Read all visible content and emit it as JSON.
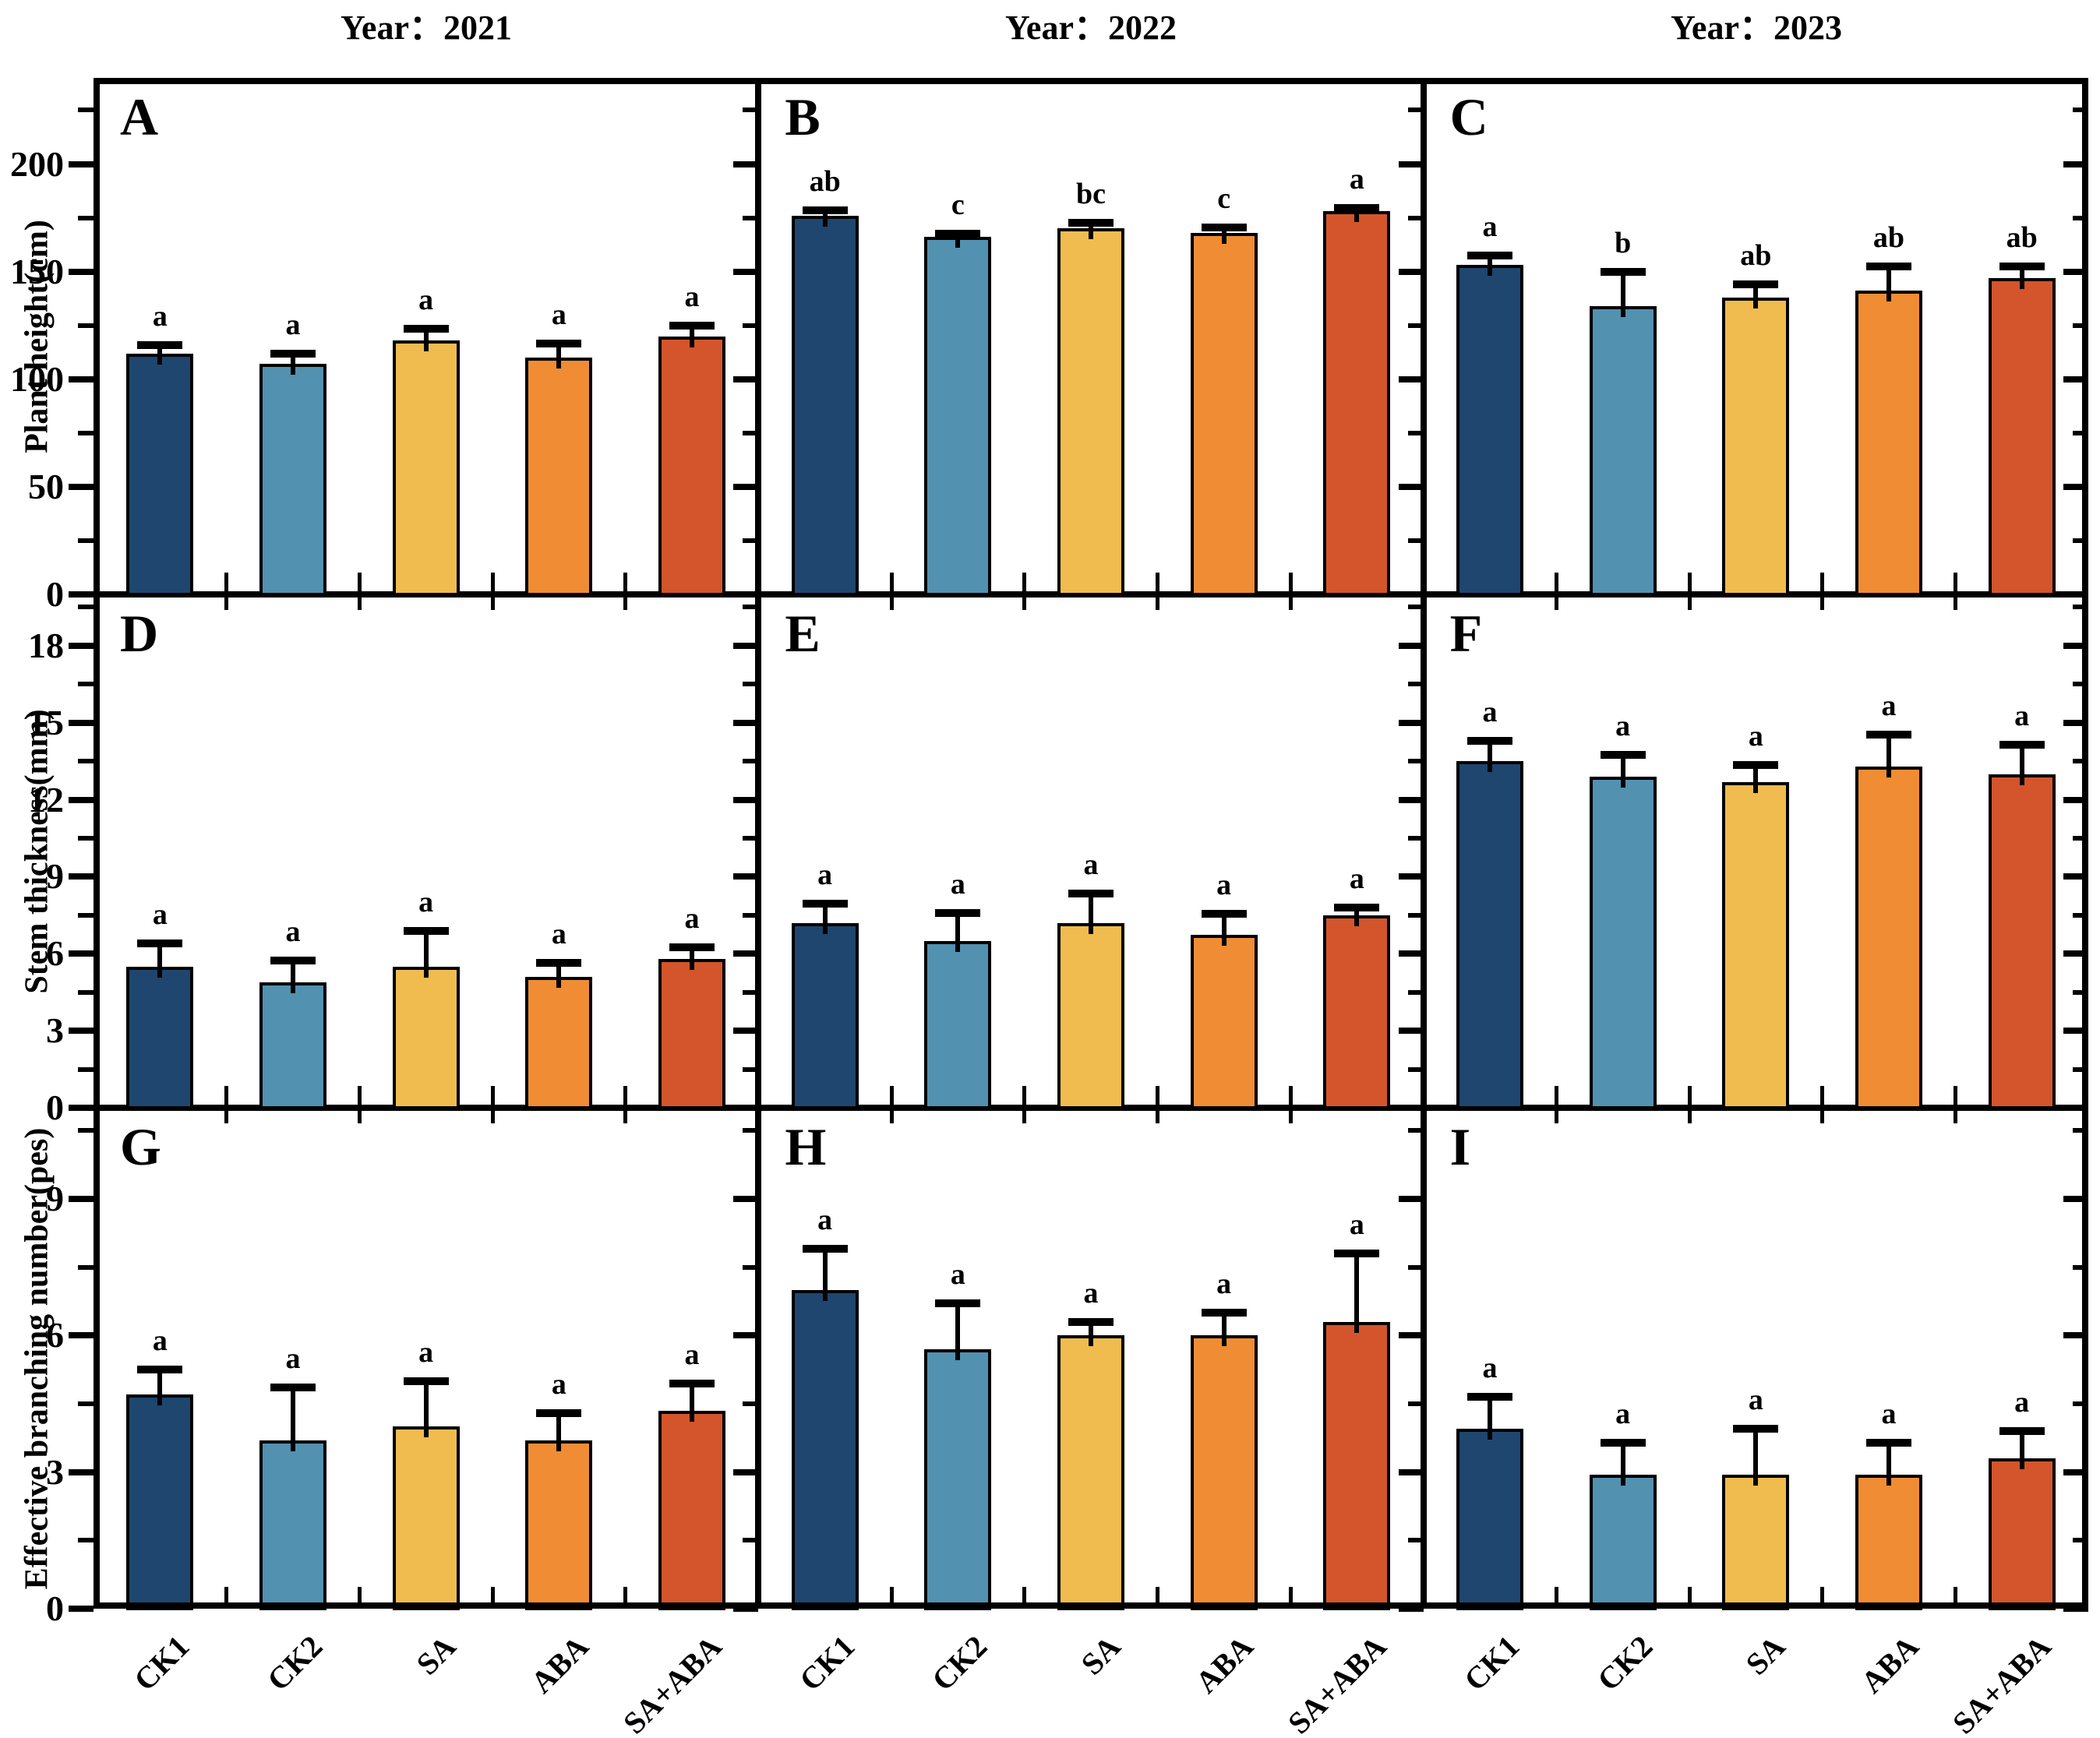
{
  "chart_data": {
    "type": "bar",
    "layout": "3x3 grid of subplots; columns are years, rows are measured traits; error bars with caps and significance letters above each bar",
    "grid": "off",
    "legend": "none",
    "categories": [
      "CK1",
      "CK2",
      "SA",
      "ABA",
      "SA+ABA"
    ],
    "bar_colors": [
      "#1F466F",
      "#5291B0",
      "#F0BC4F",
      "#F08C33",
      "#D4552B"
    ],
    "column_titles": [
      "Year：2021",
      "Year：2022",
      "Year：2023"
    ],
    "rows": [
      {
        "ylabel": "Plant height(cm)",
        "ylim": [
          0,
          240
        ],
        "yticks": [
          0,
          50,
          100,
          150,
          200
        ],
        "minor_tick_step": 25,
        "panels": [
          {
            "label": "A",
            "year": "2021",
            "values": [
              112,
              107,
              118,
              110,
              120
            ],
            "errors": [
              4,
              5,
              5.5,
              6.5,
              5
            ],
            "sig_letters": [
              "a",
              "a",
              "a",
              "a",
              "a"
            ]
          },
          {
            "label": "B",
            "year": "2022",
            "values": [
              176,
              166,
              170,
              168,
              178
            ],
            "errors": [
              2.5,
              1.5,
              2.5,
              2.5,
              1.5
            ],
            "sig_letters": [
              "ab",
              "c",
              "bc",
              "c",
              "a"
            ]
          },
          {
            "label": "C",
            "year": "2023",
            "values": [
              153,
              134,
              138,
              141,
              147
            ],
            "errors": [
              4.5,
              16,
              6,
              11.5,
              5.5
            ],
            "sig_letters": [
              "a",
              "b",
              "ab",
              "ab",
              "ab"
            ]
          }
        ]
      },
      {
        "ylabel": "Stem thickness(mm)",
        "ylim": [
          0,
          20
        ],
        "yticks": [
          0,
          3,
          6,
          9,
          12,
          15,
          18
        ],
        "minor_tick_step": 1.5,
        "panels": [
          {
            "label": "D",
            "year": "2021",
            "values": [
              5.5,
              4.9,
              5.5,
              5.1,
              5.8
            ],
            "errors": [
              0.9,
              0.85,
              1.4,
              0.55,
              0.45
            ],
            "sig_letters": [
              "a",
              "a",
              "a",
              "a",
              "a"
            ]
          },
          {
            "label": "E",
            "year": "2022",
            "values": [
              7.2,
              6.5,
              7.2,
              6.75,
              7.5
            ],
            "errors": [
              0.75,
              1.1,
              1.15,
              0.8,
              0.3
            ],
            "sig_letters": [
              "a",
              "a",
              "a",
              "a",
              "a"
            ]
          },
          {
            "label": "F",
            "year": "2023",
            "values": [
              13.5,
              12.9,
              12.7,
              13.3,
              13.0
            ],
            "errors": [
              0.8,
              0.85,
              0.65,
              1.25,
              1.15
            ],
            "sig_letters": [
              "a",
              "a",
              "a",
              "a",
              "a"
            ]
          }
        ]
      },
      {
        "ylabel": "Effective branching number(pes)",
        "ylim": [
          0,
          11
        ],
        "yticks": [
          0,
          3,
          6,
          9
        ],
        "minor_tick_step": 1.5,
        "panels": [
          {
            "label": "G",
            "year": "2021",
            "values": [
              4.7,
              3.7,
              4.0,
              3.7,
              4.35
            ],
            "errors": [
              0.55,
              1.15,
              1.0,
              0.6,
              0.6
            ],
            "sig_letters": [
              "a",
              "a",
              "a",
              "a",
              "a"
            ]
          },
          {
            "label": "H",
            "year": "2022",
            "values": [
              7.0,
              5.7,
              6.0,
              6.0,
              6.3
            ],
            "errors": [
              0.9,
              1.0,
              0.3,
              0.5,
              1.5
            ],
            "sig_letters": [
              "a",
              "a",
              "a",
              "a",
              "a"
            ]
          },
          {
            "label": "I",
            "year": "2023",
            "values": [
              3.95,
              2.95,
              2.95,
              2.95,
              3.3
            ],
            "errors": [
              0.7,
              0.7,
              1.0,
              0.7,
              0.6
            ],
            "sig_letters": [
              "a",
              "a",
              "a",
              "a",
              "a"
            ]
          }
        ]
      }
    ],
    "x_tick_labels": [
      "CK1",
      "CK2",
      "SA",
      "ABA",
      "SA+ABA"
    ]
  }
}
